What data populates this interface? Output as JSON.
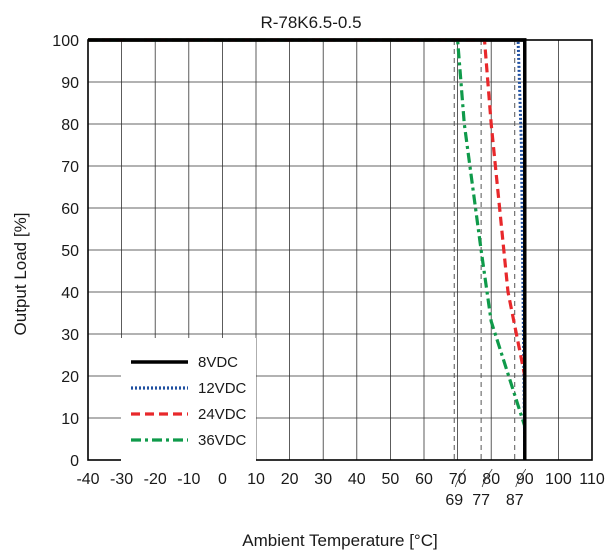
{
  "chart_data": {
    "type": "line",
    "title": "R-78K6.5-0.5",
    "xlabel": "Ambient Temperature [°C]",
    "ylabel": "Output Load [%]",
    "xlim": [
      -40,
      110
    ],
    "ylim": [
      0,
      100
    ],
    "x_ticks": [
      -40,
      -30,
      -20,
      -10,
      0,
      10,
      20,
      30,
      40,
      50,
      60,
      70,
      80,
      90,
      100,
      110
    ],
    "y_ticks": [
      0,
      10,
      20,
      30,
      40,
      50,
      60,
      70,
      80,
      90,
      100
    ],
    "extra_x_ticks": [
      69,
      77,
      87
    ],
    "grid": true,
    "legend_position": "bottom-left",
    "series": [
      {
        "name": "8VDC",
        "color": "#000000",
        "dash": "solid",
        "points": [
          [
            -40,
            100
          ],
          [
            90,
            100
          ],
          [
            90,
            0
          ]
        ]
      },
      {
        "name": "12VDC",
        "color": "#1f4fa0",
        "dash": "dotted",
        "points": [
          [
            -40,
            100
          ],
          [
            88,
            100
          ],
          [
            89,
            75
          ],
          [
            90,
            0
          ]
        ]
      },
      {
        "name": "24VDC",
        "color": "#e8282b",
        "dash": "dashed",
        "points": [
          [
            -40,
            100
          ],
          [
            78,
            100
          ],
          [
            80,
            80
          ],
          [
            85,
            40
          ],
          [
            90,
            20
          ]
        ]
      },
      {
        "name": "36VDC",
        "color": "#0f9a4a",
        "dash": "dashdot",
        "points": [
          [
            -40,
            100
          ],
          [
            70,
            100
          ],
          [
            72,
            80
          ],
          [
            77,
            50
          ],
          [
            80,
            33
          ],
          [
            90,
            8
          ]
        ]
      }
    ]
  }
}
